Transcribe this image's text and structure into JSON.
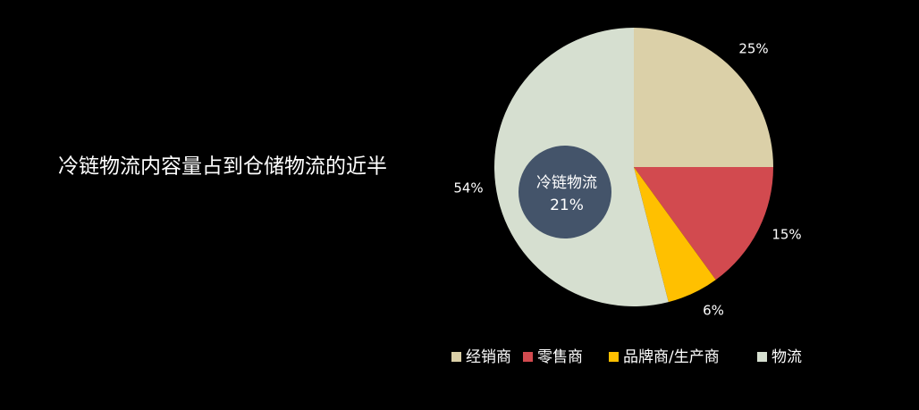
{
  "headline": "冷链物流内容量占到仓储物流的近半",
  "chart_data": {
    "type": "pie",
    "categories": [
      "经销商",
      "零售商",
      "品牌商/生产商",
      "物流"
    ],
    "values": [
      25,
      15,
      6,
      54
    ],
    "value_labels": [
      "25%",
      "15%",
      "6%",
      "54%"
    ],
    "colors": [
      "#dbd0a8",
      "#d24a4f",
      "#ffc000",
      "#d6dfd0"
    ],
    "legend": "bottom",
    "annotation": {
      "text": "冷链物流",
      "value": 21,
      "value_label": "21%",
      "color": "#44546a"
    }
  }
}
